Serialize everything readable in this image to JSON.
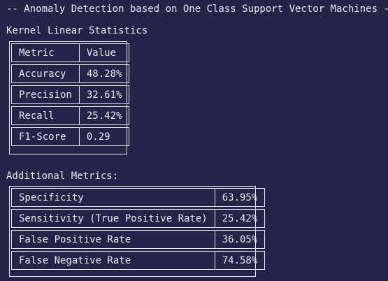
{
  "terminal": {
    "banner": "-- Anomaly Detection based on One Class Support Vector Machines --",
    "stats_title": "Kernel Linear Statistics",
    "stats_table": {
      "header": [
        "Metric",
        "Value"
      ],
      "rows": [
        [
          "Accuracy",
          "48.28%"
        ],
        [
          "Precision",
          "32.61%"
        ],
        [
          "Recall",
          "25.42%"
        ],
        [
          "F1-Score",
          "0.29"
        ]
      ]
    },
    "additional_title": "Additional Metrics:",
    "additional_table": {
      "rows": [
        [
          "Specificity",
          "63.95%"
        ],
        [
          "Sensitivity (True Positive Rate)",
          "25.42%"
        ],
        [
          "False Positive Rate",
          "36.05%"
        ],
        [
          "False Negative Rate",
          "74.58%"
        ]
      ]
    },
    "colors": {
      "background": "#232448",
      "foreground": "#e8e8ee"
    }
  }
}
